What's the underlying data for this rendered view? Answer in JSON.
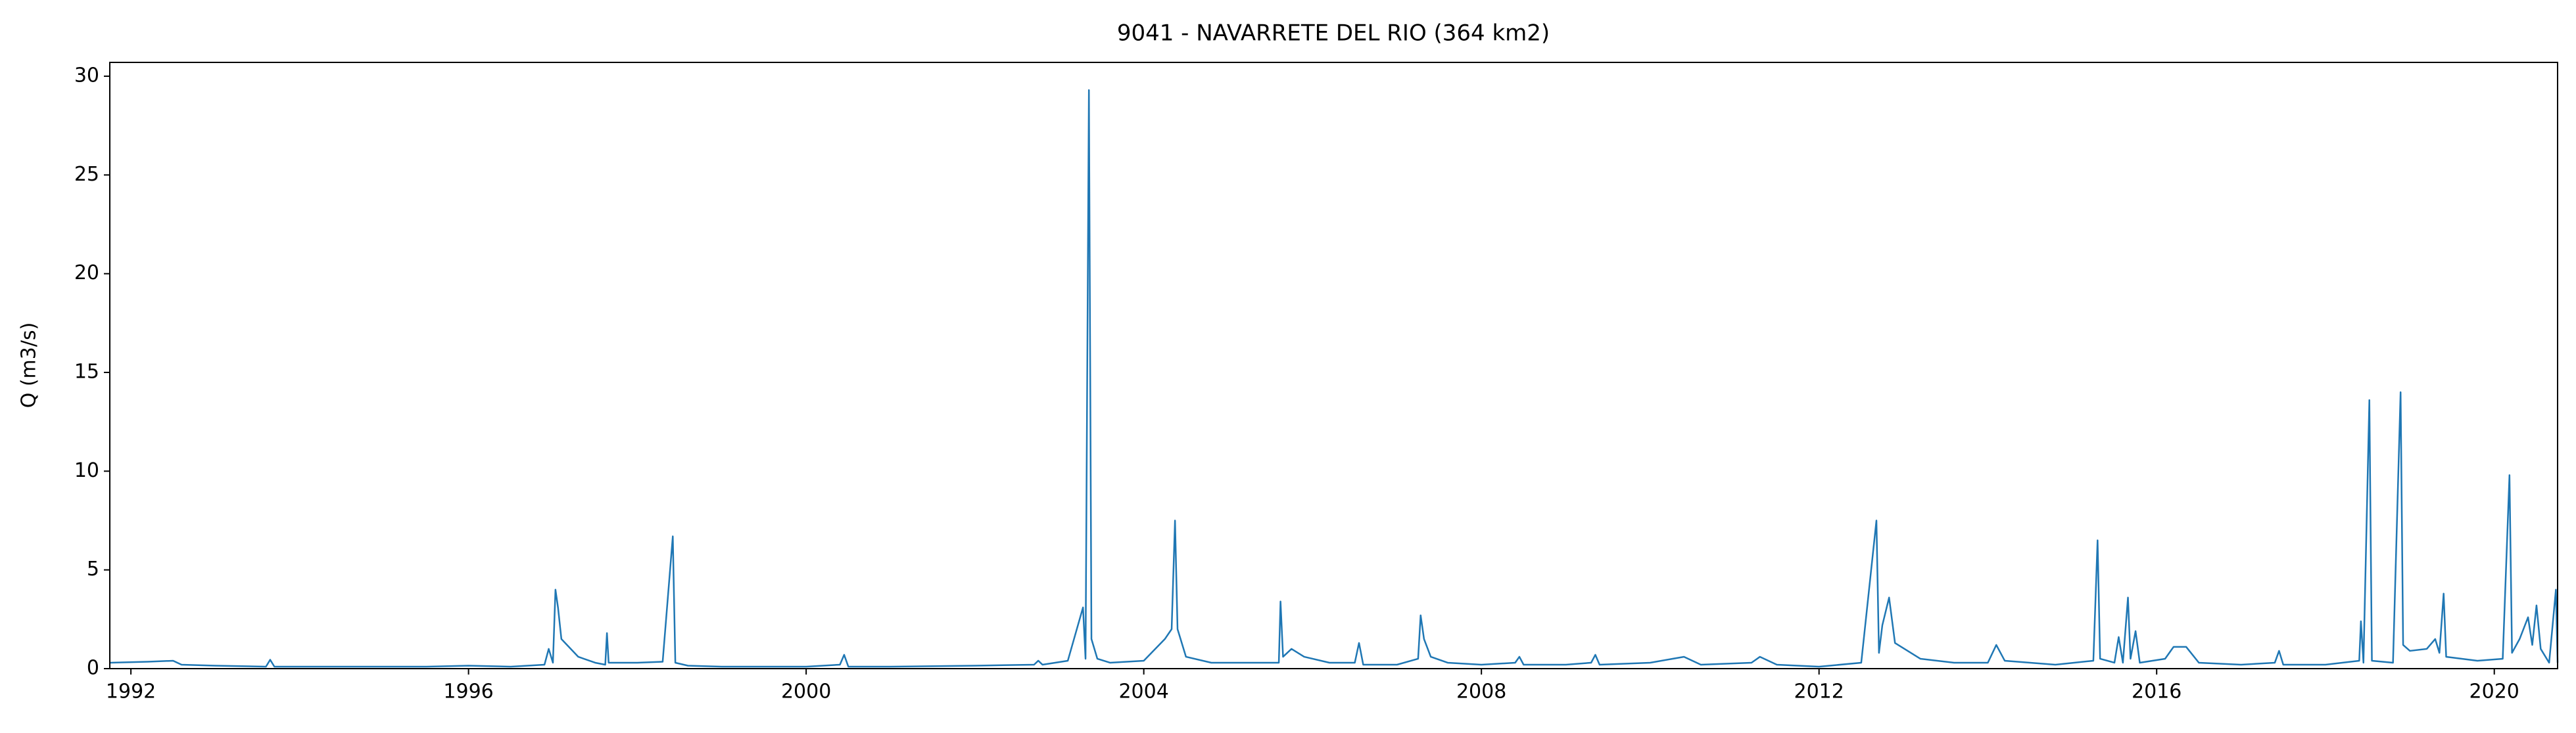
{
  "chart_data": {
    "type": "line",
    "title": "9041 - NAVARRETE DEL RIO (364 km2)",
    "ylabel": "Q (m3/s)",
    "xlim": [
      1991.75,
      2020.75
    ],
    "xticks": [
      1992,
      1996,
      2000,
      2004,
      2008,
      2012,
      2016,
      2020
    ],
    "ylim": [
      0,
      30.7
    ],
    "yticks": [
      0,
      5,
      10,
      15,
      20,
      25,
      30
    ],
    "grid": false,
    "x": [
      1991.75,
      1992.2,
      1992.5,
      1992.6,
      1993.0,
      1993.6,
      1993.65,
      1993.7,
      1994.5,
      1995.5,
      1996.0,
      1996.5,
      1996.9,
      1996.95,
      1997.0,
      1997.03,
      1997.06,
      1997.1,
      1997.3,
      1997.5,
      1997.62,
      1997.64,
      1997.66,
      1998.0,
      1998.3,
      1998.42,
      1998.45,
      1998.6,
      1999.0,
      2000.0,
      2000.4,
      2000.45,
      2000.5,
      2001.0,
      2002.0,
      2002.7,
      2002.75,
      2002.8,
      2003.1,
      2003.28,
      2003.31,
      2003.35,
      2003.38,
      2003.45,
      2003.6,
      2004.0,
      2004.25,
      2004.33,
      2004.37,
      2004.4,
      2004.5,
      2004.8,
      2005.3,
      2005.6,
      2005.62,
      2005.65,
      2005.75,
      2005.9,
      2006.2,
      2006.5,
      2006.55,
      2006.6,
      2007.0,
      2007.25,
      2007.28,
      2007.32,
      2007.4,
      2007.6,
      2008.0,
      2008.4,
      2008.45,
      2008.5,
      2009.0,
      2009.3,
      2009.35,
      2009.4,
      2010.0,
      2010.4,
      2010.6,
      2011.2,
      2011.3,
      2011.5,
      2012.0,
      2012.5,
      2012.68,
      2012.71,
      2012.75,
      2012.83,
      2012.9,
      2013.2,
      2013.6,
      2014.0,
      2014.1,
      2014.2,
      2014.8,
      2015.25,
      2015.3,
      2015.33,
      2015.5,
      2015.55,
      2015.6,
      2015.66,
      2015.69,
      2015.75,
      2015.8,
      2016.1,
      2016.2,
      2016.35,
      2016.5,
      2017.0,
      2017.4,
      2017.45,
      2017.5,
      2018.0,
      2018.4,
      2018.42,
      2018.45,
      2018.52,
      2018.55,
      2018.8,
      2018.89,
      2018.92,
      2019.0,
      2019.2,
      2019.3,
      2019.35,
      2019.4,
      2019.43,
      2019.8,
      2020.1,
      2020.18,
      2020.21,
      2020.3,
      2020.4,
      2020.45,
      2020.5,
      2020.55,
      2020.65,
      2020.73,
      2020.75
    ],
    "series": [
      {
        "name": "Q",
        "color": "#1f77b4",
        "values": [
          0.3,
          0.35,
          0.4,
          0.2,
          0.15,
          0.1,
          0.45,
          0.1,
          0.1,
          0.1,
          0.15,
          0.1,
          0.2,
          1.0,
          0.3,
          4.0,
          3.1,
          1.5,
          0.6,
          0.3,
          0.2,
          1.8,
          0.3,
          0.3,
          0.35,
          6.7,
          0.3,
          0.15,
          0.1,
          0.1,
          0.2,
          0.7,
          0.1,
          0.1,
          0.15,
          0.2,
          0.4,
          0.2,
          0.4,
          3.1,
          0.5,
          29.3,
          1.5,
          0.5,
          0.3,
          0.4,
          1.5,
          2.0,
          7.5,
          2.0,
          0.6,
          0.3,
          0.3,
          0.3,
          3.4,
          0.6,
          1.0,
          0.6,
          0.3,
          0.3,
          1.3,
          0.2,
          0.2,
          0.5,
          2.7,
          1.5,
          0.6,
          0.3,
          0.2,
          0.3,
          0.6,
          0.2,
          0.2,
          0.3,
          0.7,
          0.2,
          0.3,
          0.6,
          0.2,
          0.3,
          0.6,
          0.2,
          0.1,
          0.3,
          7.5,
          0.8,
          2.2,
          3.6,
          1.3,
          0.5,
          0.3,
          0.3,
          1.2,
          0.4,
          0.2,
          0.4,
          6.5,
          0.5,
          0.3,
          1.6,
          0.3,
          3.6,
          0.5,
          1.9,
          0.3,
          0.5,
          1.1,
          1.1,
          0.3,
          0.2,
          0.3,
          0.9,
          0.2,
          0.2,
          0.4,
          2.4,
          0.3,
          13.6,
          0.4,
          0.3,
          14.0,
          1.2,
          0.9,
          1.0,
          1.5,
          0.8,
          3.8,
          0.6,
          0.4,
          0.5,
          9.8,
          0.8,
          1.5,
          2.6,
          1.2,
          3.2,
          1.0,
          0.3,
          4.0,
          0.3
        ]
      }
    ]
  }
}
